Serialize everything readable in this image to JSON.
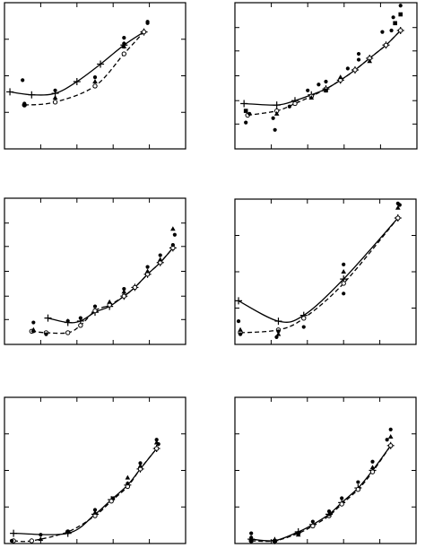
{
  "chart_data": [
    {
      "type": "line",
      "panel": "top-left",
      "xlim": [
        0,
        10
      ],
      "ylim": [
        0,
        10
      ],
      "grid": false,
      "xticks": [
        2,
        4,
        6,
        8
      ],
      "yticks": [
        2.5,
        5,
        7.5
      ],
      "series": [
        {
          "style": "solid",
          "marker": "plus",
          "x": [
            0.3,
            1.5,
            2.8,
            4.0,
            5.3,
            6.6,
            7.7
          ],
          "y": [
            3.9,
            3.7,
            3.8,
            4.6,
            5.8,
            7.1,
            8.0
          ]
        },
        {
          "style": "dashed",
          "marker": "open-circle",
          "x": [
            1.1,
            2.8,
            5.0,
            6.6,
            7.7
          ],
          "y": [
            3.0,
            3.2,
            4.3,
            6.5,
            8.0
          ]
        }
      ],
      "scatter": {
        "dots": [
          [
            1.0,
            4.7
          ],
          [
            1.1,
            3.1
          ],
          [
            1.1,
            3.0
          ],
          [
            2.8,
            4.0
          ],
          [
            5.0,
            4.9
          ],
          [
            6.6,
            7.6
          ],
          [
            6.6,
            7.2
          ],
          [
            7.9,
            8.7
          ],
          [
            7.9,
            8.6
          ]
        ],
        "triangles": [
          [
            2.8,
            3.5
          ],
          [
            5.0,
            4.6
          ],
          [
            6.6,
            7.0
          ]
        ]
      }
    },
    {
      "type": "line",
      "panel": "top-right",
      "xlim": [
        0,
        10
      ],
      "ylim": [
        0,
        10
      ],
      "grid": false,
      "xticks": [
        2,
        4,
        6,
        8
      ],
      "yticks": [
        1.7,
        3.3,
        5.0,
        6.7,
        8.3
      ],
      "series": [
        {
          "style": "solid",
          "marker": "plus",
          "x": [
            0.5,
            2.3,
            3.3,
            4.2,
            5.0,
            5.8,
            6.6,
            7.4,
            8.3,
            9.1
          ],
          "y": [
            3.1,
            3.0,
            3.3,
            3.7,
            4.1,
            4.7,
            5.4,
            6.2,
            7.1,
            8.1
          ]
        },
        {
          "style": "dashed",
          "marker": "open-circle",
          "x": [
            0.7,
            2.3,
            3.3,
            4.2,
            5.0,
            5.8,
            6.6,
            7.4,
            8.3,
            9.1
          ],
          "y": [
            2.3,
            2.6,
            3.1,
            3.6,
            4.1,
            4.7,
            5.4,
            6.2,
            7.1,
            8.1
          ]
        },
        {
          "style": "none",
          "marker": "filled-square",
          "x": [
            0.6,
            5.0,
            8.8,
            9.1
          ],
          "y": [
            2.6,
            4.0,
            8.6,
            9.2
          ]
        }
      ],
      "scatter": {
        "dots": [
          [
            0.6,
            1.8
          ],
          [
            0.8,
            2.4
          ],
          [
            2.1,
            2.1
          ],
          [
            2.2,
            1.3
          ],
          [
            3.0,
            2.9
          ],
          [
            4.0,
            4.0
          ],
          [
            4.6,
            4.4
          ],
          [
            5.0,
            4.6
          ],
          [
            6.2,
            5.5
          ],
          [
            6.8,
            6.5
          ],
          [
            6.8,
            6.1
          ],
          [
            8.1,
            8.0
          ],
          [
            8.6,
            8.1
          ],
          [
            8.7,
            9.0
          ],
          [
            9.1,
            9.8
          ]
        ],
        "triangles": [
          [
            2.3,
            2.4
          ],
          [
            4.2,
            3.5
          ],
          [
            5.8,
            4.9
          ],
          [
            7.4,
            6.0
          ]
        ]
      }
    },
    {
      "type": "line",
      "panel": "middle-left",
      "xlim": [
        0,
        10
      ],
      "ylim": [
        0,
        10
      ],
      "grid": false,
      "xticks": [
        2,
        4,
        6,
        8
      ],
      "yticks": [
        1.7,
        3.3,
        5.0,
        6.7,
        8.3
      ],
      "series": [
        {
          "style": "solid",
          "marker": "plus",
          "x": [
            2.4,
            3.5,
            4.2,
            5.0,
            5.8,
            6.6,
            7.2,
            7.9,
            8.6,
            9.3
          ],
          "y": [
            1.8,
            1.5,
            1.6,
            2.2,
            2.6,
            3.3,
            3.9,
            4.8,
            5.6,
            6.6
          ]
        },
        {
          "style": "dashed",
          "marker": "open-circle",
          "x": [
            1.5,
            2.3,
            3.5,
            4.2,
            5.0,
            5.8,
            6.6,
            7.2,
            7.9,
            8.6,
            9.3
          ],
          "y": [
            0.9,
            0.8,
            0.8,
            1.3,
            2.3,
            2.7,
            3.3,
            3.9,
            4.8,
            5.6,
            6.6
          ]
        }
      ],
      "scatter": {
        "dots": [
          [
            1.6,
            1.5
          ],
          [
            1.6,
            0.9
          ],
          [
            2.3,
            0.7
          ],
          [
            3.5,
            1.6
          ],
          [
            4.2,
            1.8
          ],
          [
            5.0,
            2.6
          ],
          [
            6.6,
            3.8
          ],
          [
            7.9,
            5.3
          ],
          [
            8.6,
            6.1
          ],
          [
            9.3,
            6.8
          ],
          [
            9.4,
            7.5
          ]
        ],
        "triangles": [
          [
            1.6,
            1.0
          ],
          [
            5.8,
            2.9
          ],
          [
            6.6,
            3.6
          ],
          [
            7.9,
            5.0
          ],
          [
            8.6,
            5.8
          ],
          [
            9.3,
            7.9
          ]
        ]
      }
    },
    {
      "type": "line",
      "panel": "middle-right",
      "xlim": [
        0,
        10
      ],
      "ylim": [
        0,
        10
      ],
      "grid": false,
      "xticks": [
        2,
        4,
        6,
        8
      ],
      "yticks": [
        2.5,
        5,
        7.5
      ],
      "series": [
        {
          "style": "solid",
          "marker": "plus",
          "x": [
            0.2,
            2.4,
            3.8,
            6.0,
            9.0
          ],
          "y": [
            3.0,
            1.6,
            2.0,
            4.5,
            8.7
          ]
        },
        {
          "style": "dashed",
          "marker": "open-circle",
          "x": [
            0.3,
            2.4,
            3.8,
            6.0,
            9.0
          ],
          "y": [
            0.8,
            1.0,
            1.8,
            4.2,
            8.7
          ]
        }
      ],
      "scatter": {
        "dots": [
          [
            0.2,
            1.6
          ],
          [
            0.3,
            0.7
          ],
          [
            2.3,
            0.5
          ],
          [
            2.4,
            0.9
          ],
          [
            3.8,
            1.2
          ],
          [
            6.0,
            3.5
          ],
          [
            6.0,
            5.5
          ],
          [
            9.0,
            9.7
          ],
          [
            9.1,
            9.6
          ]
        ],
        "triangles": [
          [
            0.3,
            1.0
          ],
          [
            2.4,
            0.7
          ],
          [
            6.0,
            5.0
          ],
          [
            9.0,
            9.4
          ]
        ]
      }
    },
    {
      "type": "line",
      "panel": "bottom-left",
      "xlim": [
        0,
        10
      ],
      "ylim": [
        0,
        10
      ],
      "grid": false,
      "xticks": [
        2,
        4,
        6,
        8
      ],
      "yticks": [
        2.5,
        5,
        7.5
      ],
      "series": [
        {
          "style": "solid",
          "marker": "plus",
          "x": [
            0.5,
            3.5,
            5.0,
            5.9,
            6.8,
            7.5,
            8.4
          ],
          "y": [
            0.7,
            0.7,
            2.0,
            3.0,
            4.0,
            5.1,
            6.5
          ]
        },
        {
          "style": "dashed",
          "marker": "open-circle",
          "x": [
            0.5,
            1.5,
            3.5,
            5.0,
            5.9,
            6.8,
            7.5,
            8.4
          ],
          "y": [
            0,
            0.1,
            0.8,
            1.9,
            2.9,
            3.9,
            5.1,
            6.5
          ]
        }
      ],
      "scatter": {
        "dots": [
          [
            0.4,
            0.1
          ],
          [
            0.4,
            -0.1
          ],
          [
            2.0,
            0.6
          ],
          [
            3.5,
            0.8
          ],
          [
            5.0,
            2.3
          ],
          [
            6.0,
            3.1
          ],
          [
            6.8,
            4.1
          ],
          [
            7.5,
            5.5
          ],
          [
            8.4,
            7.1
          ],
          [
            8.5,
            6.8
          ]
        ],
        "triangles": [
          [
            2.0,
            0.3
          ],
          [
            5.0,
            2.1
          ],
          [
            6.8,
            4.5
          ],
          [
            7.5,
            5.3
          ],
          [
            8.4,
            6.9
          ]
        ]
      }
    },
    {
      "type": "line",
      "panel": "bottom-right",
      "xlim": [
        0,
        10
      ],
      "ylim": [
        0,
        10
      ],
      "grid": false,
      "xticks": [
        2,
        4,
        6,
        8
      ],
      "yticks": [
        2.5,
        5,
        7.5
      ],
      "series": [
        {
          "style": "solid",
          "marker": "plus",
          "x": [
            0.9,
            2.2,
            3.5,
            4.3,
            5.2,
            5.9,
            6.8,
            7.6,
            8.6
          ],
          "y": [
            0.3,
            0.2,
            0.8,
            1.3,
            2.0,
            2.8,
            3.8,
            5.0,
            6.7
          ]
        },
        {
          "style": "dashed",
          "marker": "open-circle",
          "x": [
            0.9,
            2.2,
            3.5,
            4.3,
            5.2,
            5.9,
            6.8,
            7.6,
            8.6
          ],
          "y": [
            -0.1,
            0.1,
            0.7,
            1.2,
            1.9,
            2.7,
            3.7,
            4.9,
            6.7
          ]
        }
      ],
      "scatter": {
        "dots": [
          [
            0.9,
            0.7
          ],
          [
            0.9,
            0.4
          ],
          [
            0.9,
            -0.1
          ],
          [
            2.2,
            0.1
          ],
          [
            3.5,
            0.7
          ],
          [
            4.3,
            1.5
          ],
          [
            5.2,
            2.2
          ],
          [
            5.9,
            3.1
          ],
          [
            6.8,
            4.2
          ],
          [
            7.6,
            5.6
          ],
          [
            8.4,
            7.1
          ],
          [
            8.6,
            7.8
          ]
        ],
        "triangles": [
          [
            2.2,
            -0.1
          ],
          [
            3.5,
            0.6
          ],
          [
            5.2,
            2.0
          ],
          [
            7.6,
            5.2
          ],
          [
            8.6,
            7.3
          ]
        ]
      }
    }
  ]
}
